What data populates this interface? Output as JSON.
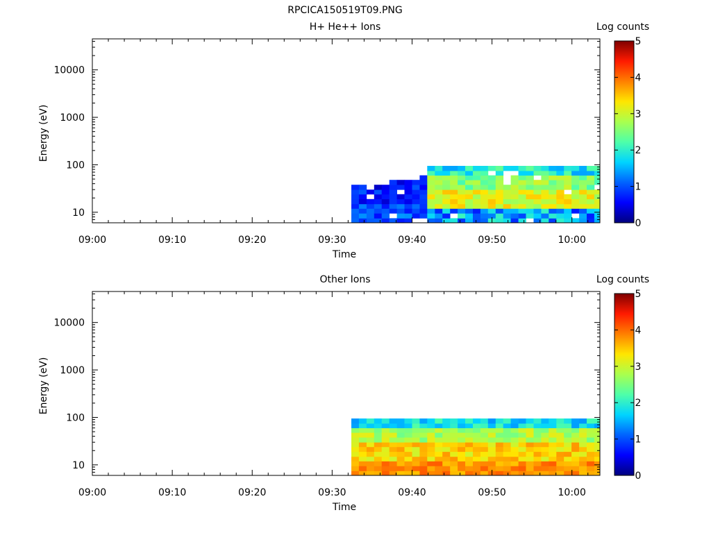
{
  "figure_title": "RPCICA150519T09.PNG",
  "colors": {
    "colormap": [
      "#00007f",
      "#0000ff",
      "#0063ff",
      "#00d4ff",
      "#4effa9",
      "#a9ff4e",
      "#ffe600",
      "#ff8000",
      "#ff1a00",
      "#7f0000"
    ],
    "axis": "#000000",
    "background": "#ffffff"
  },
  "chart_data": [
    {
      "type": "heatmap",
      "title": "H+ He++ Ions",
      "xlabel": "Time",
      "ylabel": "Energy (eV)",
      "y_scale": "log",
      "ylim": [
        6,
        45000
      ],
      "x_ticks": [
        "09:00",
        "09:10",
        "09:20",
        "09:30",
        "09:40",
        "09:50",
        "10:00"
      ],
      "xlim_minutes": [
        0,
        63.5
      ],
      "y_ticks": [
        {
          "value": 10,
          "label": "10"
        },
        {
          "value": 100,
          "label": "100"
        },
        {
          "value": 1000,
          "label": "1000"
        },
        {
          "value": 10000,
          "label": "10000"
        }
      ],
      "colorbar": {
        "label": "Log counts",
        "range": [
          0,
          5
        ],
        "ticks": [
          "0",
          "1",
          "2",
          "3",
          "4",
          "5"
        ]
      },
      "data_start_minute": 32.4,
      "data_end_minute": 63.5,
      "time_bin_minutes": 0.95,
      "energy_bins": [
        6,
        7.5,
        9.5,
        12,
        15,
        19,
        24,
        30,
        38,
        48,
        60,
        75,
        95
      ],
      "approx_log_counts": {
        "before_09_41_low_energy": 1.0,
        "before_09_41_mid_energy": 0.7,
        "after_09_41_below_12eV": 1.4,
        "after_09_41_12_to_30eV": 3.1,
        "after_09_41_30_to_60eV": 2.6,
        "after_09_41_60_to_95eV": 1.9,
        "upper_limit_eV": 95
      }
    },
    {
      "type": "heatmap",
      "title": "Other Ions",
      "xlabel": "Time",
      "ylabel": "Energy (eV)",
      "y_scale": "log",
      "ylim": [
        6,
        45000
      ],
      "x_ticks": [
        "09:00",
        "09:10",
        "09:20",
        "09:30",
        "09:40",
        "09:50",
        "10:00"
      ],
      "xlim_minutes": [
        0,
        63.5
      ],
      "y_ticks": [
        {
          "value": 10,
          "label": "10"
        },
        {
          "value": 100,
          "label": "100"
        },
        {
          "value": 1000,
          "label": "1000"
        },
        {
          "value": 10000,
          "label": "10000"
        }
      ],
      "colorbar": {
        "label": "Log counts",
        "range": [
          0,
          5
        ],
        "ticks": [
          "0",
          "1",
          "2",
          "3",
          "4",
          "5"
        ]
      },
      "data_start_minute": 32.4,
      "data_end_minute": 63.5,
      "time_bin_minutes": 0.95,
      "energy_bins": [
        6,
        7.5,
        9.5,
        12,
        15,
        19,
        24,
        30,
        38,
        48,
        60,
        75,
        95
      ],
      "approx_log_counts": {
        "below_12eV": 3.8,
        "12_to_30eV": 3.4,
        "30_to_60eV": 2.8,
        "60_to_95eV": 1.8,
        "upper_limit_eV": 95
      }
    }
  ]
}
